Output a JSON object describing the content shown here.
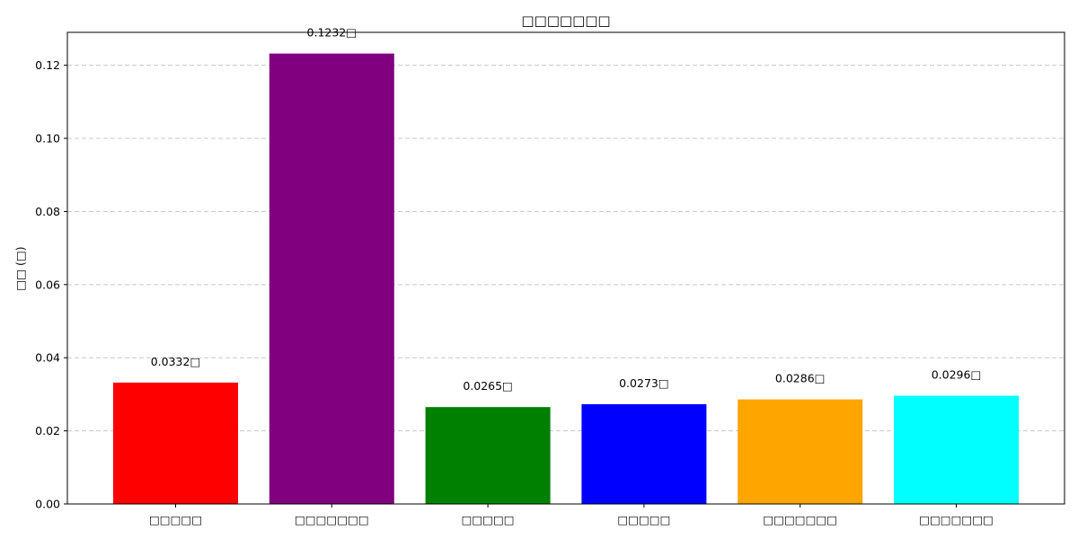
{
  "chart_data": {
    "type": "bar",
    "title": "□□□□□□□",
    "xlabel": "",
    "ylabel": "□□ (□)",
    "categories": [
      "□□□□□",
      "□□□□□□□",
      "□□□□□",
      "□□□□□",
      "□□□□□□□",
      "□□□□□□□"
    ],
    "values": [
      0.0332,
      0.1232,
      0.0265,
      0.0273,
      0.0286,
      0.0296
    ],
    "value_labels": [
      "0.0332□",
      "0.1232□",
      "0.0265□",
      "0.0273□",
      "0.0286□",
      "0.0296□"
    ],
    "colors": [
      "#ff0000",
      "#800080",
      "#008000",
      "#0000ff",
      "#ffa500",
      "#00ffff"
    ],
    "ylim": [
      0,
      0.129
    ],
    "yticks": [
      0.0,
      0.02,
      0.04,
      0.06,
      0.08,
      0.1,
      0.12
    ],
    "ytick_labels": [
      "0.00",
      "0.02",
      "0.04",
      "0.06",
      "0.08",
      "0.10",
      "0.12"
    ],
    "grid": "y-dashed",
    "legend": "none"
  }
}
